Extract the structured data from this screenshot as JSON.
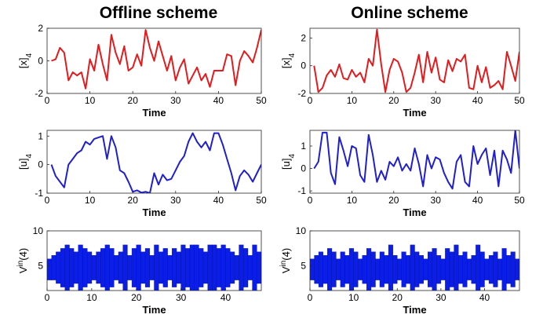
{
  "column_titles": [
    "Offline scheme",
    "Online scheme"
  ],
  "colors": {
    "state": "#e41a1c",
    "control": "#1f1fd0",
    "interval": "#0a1ee8"
  },
  "chart_data": [
    {
      "id": "offline_x",
      "type": "line",
      "color": "#e41a1c",
      "ylabel_main": "[x]",
      "ylabel_sub": "4",
      "xlabel": "Time",
      "xlim": [
        0,
        50
      ],
      "ylim": [
        -2,
        2
      ],
      "xticks": [
        0,
        10,
        20,
        30,
        40,
        50
      ],
      "yticks": [
        -2,
        0,
        2
      ],
      "x": [
        1,
        2,
        3,
        4,
        5,
        6,
        7,
        8,
        9,
        10,
        11,
        12,
        13,
        14,
        15,
        16,
        17,
        18,
        19,
        20,
        21,
        22,
        23,
        24,
        25,
        26,
        27,
        28,
        29,
        30,
        31,
        32,
        33,
        34,
        35,
        36,
        37,
        38,
        39,
        40,
        41,
        42,
        43,
        44,
        45,
        46,
        47,
        48,
        49,
        50
      ],
      "y": [
        0.0,
        0.1,
        0.8,
        0.5,
        -1.2,
        -0.7,
        -0.9,
        -0.7,
        -1.7,
        0.1,
        -0.6,
        1.0,
        -0.2,
        -1.2,
        1.6,
        0.5,
        -0.2,
        0.9,
        -0.6,
        -0.4,
        0.4,
        -0.3,
        1.9,
        0.8,
        0.0,
        1.2,
        0.3,
        -0.6,
        0.3,
        -1.2,
        -0.4,
        0.1,
        -1.4,
        -0.9,
        -0.4,
        -1.2,
        -0.8,
        -1.6,
        -0.6,
        -0.6,
        -0.6,
        0.4,
        0.3,
        -1.5,
        0.0,
        0.6,
        0.3,
        -0.1,
        0.8,
        1.9
      ]
    },
    {
      "id": "online_x",
      "type": "line",
      "color": "#e41a1c",
      "ylabel_main": "[x]",
      "ylabel_sub": "4",
      "xlabel": "Time",
      "xlim": [
        0,
        50
      ],
      "ylim": [
        -2,
        2.7
      ],
      "xticks": [
        0,
        10,
        20,
        30,
        40,
        50
      ],
      "yticks": [
        -2,
        0,
        2
      ],
      "x": [
        1,
        2,
        3,
        4,
        5,
        6,
        7,
        8,
        9,
        10,
        11,
        12,
        13,
        14,
        15,
        16,
        17,
        18,
        19,
        20,
        21,
        22,
        23,
        24,
        25,
        26,
        27,
        28,
        29,
        30,
        31,
        32,
        33,
        34,
        35,
        36,
        37,
        38,
        39,
        40,
        41,
        42,
        43,
        44,
        45,
        46,
        47,
        48,
        49,
        50
      ],
      "y": [
        0.0,
        -1.9,
        -1.6,
        -0.7,
        -0.3,
        -0.8,
        0.1,
        -0.9,
        -1.0,
        -0.3,
        -0.8,
        -0.5,
        -1.2,
        0.5,
        0.0,
        2.6,
        0.1,
        -1.9,
        -0.3,
        0.5,
        0.3,
        -0.5,
        -1.9,
        -1.6,
        -0.5,
        0.8,
        -1.2,
        1.0,
        -0.5,
        0.6,
        -1.0,
        -1.2,
        0.4,
        -0.4,
        0.5,
        0.3,
        0.8,
        -1.6,
        -1.7,
        0.0,
        -1.2,
        -0.1,
        -1.6,
        -1.4,
        -1.1,
        -1.7,
        1.0,
        0.0,
        -1.1,
        1.0
      ]
    },
    {
      "id": "offline_u",
      "type": "line",
      "color": "#1f1fd0",
      "ylabel_main": "[u]",
      "ylabel_sub": "4",
      "xlabel": "Time",
      "xlim": [
        0,
        50
      ],
      "ylim": [
        -1,
        1.2
      ],
      "xticks": [
        0,
        10,
        20,
        30,
        40,
        50
      ],
      "yticks": [
        -1,
        0,
        1
      ],
      "x": [
        1,
        2,
        3,
        4,
        5,
        6,
        7,
        8,
        9,
        10,
        11,
        12,
        13,
        14,
        15,
        16,
        17,
        18,
        19,
        20,
        21,
        22,
        23,
        24,
        25,
        26,
        27,
        28,
        29,
        30,
        31,
        32,
        33,
        34,
        35,
        36,
        37,
        38,
        39,
        40,
        41,
        42,
        43,
        44,
        45,
        46,
        47,
        48,
        49,
        50
      ],
      "y": [
        0.0,
        -0.4,
        -0.6,
        -0.8,
        0.0,
        0.2,
        0.4,
        0.5,
        0.8,
        0.7,
        0.9,
        0.95,
        1.0,
        0.2,
        1.0,
        0.6,
        -0.2,
        -0.3,
        -0.6,
        -0.95,
        -0.9,
        -0.98,
        -0.95,
        -1.0,
        -0.3,
        -0.7,
        -0.35,
        -0.55,
        -0.5,
        -0.2,
        0.1,
        0.3,
        0.8,
        1.1,
        0.8,
        0.6,
        0.8,
        0.5,
        1.1,
        1.1,
        0.7,
        0.2,
        -0.3,
        -0.9,
        -0.4,
        -0.2,
        -0.35,
        -0.6,
        -0.3,
        0.0
      ]
    },
    {
      "id": "online_u",
      "type": "line",
      "color": "#1f1fd0",
      "ylabel_main": "[u]",
      "ylabel_sub": "4",
      "xlabel": "Time",
      "xlim": [
        0,
        50
      ],
      "ylim": [
        -1.1,
        1.7
      ],
      "xticks": [
        0,
        10,
        20,
        30,
        40,
        50
      ],
      "yticks": [
        -1,
        0,
        1
      ],
      "x": [
        1,
        2,
        3,
        4,
        5,
        6,
        7,
        8,
        9,
        10,
        11,
        12,
        13,
        14,
        15,
        16,
        17,
        18,
        19,
        20,
        21,
        22,
        23,
        24,
        25,
        26,
        27,
        28,
        29,
        30,
        31,
        32,
        33,
        34,
        35,
        36,
        37,
        38,
        39,
        40,
        41,
        42,
        43,
        44,
        45,
        46,
        47,
        48,
        49,
        50
      ],
      "y": [
        0.0,
        0.3,
        1.6,
        1.6,
        -0.2,
        -0.7,
        1.4,
        0.8,
        0.1,
        1.0,
        0.9,
        -0.3,
        -0.6,
        1.5,
        0.6,
        -0.6,
        -0.1,
        -0.5,
        0.3,
        0.1,
        0.5,
        -0.1,
        0.2,
        -0.1,
        0.9,
        0.2,
        -0.8,
        0.6,
        0.0,
        0.5,
        0.4,
        -0.2,
        -0.6,
        -0.9,
        0.3,
        0.6,
        -0.6,
        -0.8,
        1.0,
        0.2,
        0.6,
        0.9,
        -0.3,
        0.8,
        -0.8,
        0.8,
        0.4,
        -0.2,
        1.7,
        0.0
      ]
    },
    {
      "id": "offline_v",
      "type": "bar",
      "color": "#0a1ee8",
      "ylabel_main": "V",
      "ylabel_sup": "in",
      "ylabel_tail": "(4)",
      "xlabel": "Time",
      "xlim": [
        0,
        48
      ],
      "ylim": [
        1.5,
        10
      ],
      "xticks": [
        0,
        10,
        20,
        30,
        40
      ],
      "yticks": [
        5,
        10
      ],
      "x": [
        1,
        2,
        3,
        4,
        5,
        6,
        7,
        8,
        9,
        10,
        11,
        12,
        13,
        14,
        15,
        16,
        17,
        18,
        19,
        20,
        21,
        22,
        23,
        24,
        25,
        26,
        27,
        28,
        29,
        30,
        31,
        32,
        33,
        34,
        35,
        36,
        37,
        38,
        39,
        40,
        41,
        42,
        43,
        44,
        45,
        46,
        47,
        48
      ],
      "low": [
        3.0,
        3.0,
        2.5,
        2.0,
        1.5,
        2.0,
        2.5,
        1.5,
        2.0,
        2.5,
        3.0,
        2.5,
        2.0,
        1.5,
        2.0,
        3.0,
        2.5,
        1.5,
        3.0,
        2.0,
        1.5,
        2.5,
        2.0,
        3.0,
        1.5,
        2.5,
        2.0,
        3.0,
        2.0,
        2.5,
        1.5,
        2.0,
        1.5,
        1.5,
        2.0,
        2.5,
        1.5,
        1.5,
        2.0,
        1.5,
        2.0,
        2.5,
        3.0,
        1.5,
        2.0,
        3.0,
        1.5,
        2.5
      ],
      "high": [
        6.0,
        6.5,
        7.0,
        7.5,
        8.0,
        7.5,
        7.0,
        8.0,
        7.5,
        7.0,
        6.5,
        7.0,
        7.5,
        8.0,
        7.5,
        6.5,
        7.0,
        8.0,
        6.5,
        7.5,
        8.0,
        7.0,
        7.5,
        6.5,
        8.0,
        7.0,
        7.5,
        6.5,
        7.5,
        7.0,
        8.0,
        7.5,
        8.0,
        8.0,
        7.5,
        7.0,
        8.0,
        8.0,
        7.5,
        8.0,
        7.5,
        7.0,
        6.5,
        8.0,
        7.5,
        6.5,
        8.0,
        7.0
      ]
    },
    {
      "id": "online_v",
      "type": "bar",
      "color": "#0a1ee8",
      "ylabel_main": "V",
      "ylabel_sup": "in",
      "ylabel_tail": "(4)",
      "xlabel": "Time",
      "xlim": [
        0,
        48
      ],
      "ylim": [
        1.5,
        10
      ],
      "xticks": [
        0,
        10,
        20,
        30,
        40
      ],
      "yticks": [
        5,
        10
      ],
      "x": [
        1,
        2,
        3,
        4,
        5,
        6,
        7,
        8,
        9,
        10,
        11,
        12,
        13,
        14,
        15,
        16,
        17,
        18,
        19,
        20,
        21,
        22,
        23,
        24,
        25,
        26,
        27,
        28,
        29,
        30,
        31,
        32,
        33,
        34,
        35,
        36,
        37,
        38,
        39,
        40,
        41,
        42,
        43,
        44,
        45,
        46,
        47,
        48
      ],
      "low": [
        3.0,
        2.5,
        2.0,
        2.5,
        1.5,
        2.0,
        3.0,
        2.0,
        2.5,
        1.5,
        2.0,
        3.0,
        2.5,
        1.5,
        2.0,
        3.0,
        2.0,
        2.5,
        1.5,
        2.5,
        3.0,
        2.0,
        2.5,
        1.5,
        2.0,
        2.5,
        3.0,
        2.0,
        1.5,
        2.5,
        3.0,
        1.5,
        2.0,
        1.5,
        2.5,
        2.0,
        3.0,
        2.5,
        1.5,
        2.0,
        3.0,
        2.5,
        2.0,
        3.0,
        1.5,
        2.5,
        2.0,
        3.0
      ],
      "high": [
        6.0,
        6.5,
        7.0,
        6.5,
        7.5,
        7.0,
        6.0,
        7.0,
        6.5,
        7.5,
        7.0,
        6.0,
        6.5,
        7.5,
        7.0,
        6.0,
        7.0,
        6.5,
        8.0,
        6.5,
        6.0,
        7.0,
        6.5,
        8.0,
        7.0,
        6.5,
        6.0,
        7.0,
        7.5,
        6.5,
        6.0,
        7.5,
        7.0,
        8.0,
        6.5,
        7.0,
        6.0,
        6.5,
        8.0,
        7.0,
        6.0,
        6.5,
        7.0,
        6.0,
        7.5,
        6.5,
        7.0,
        6.0
      ]
    }
  ]
}
